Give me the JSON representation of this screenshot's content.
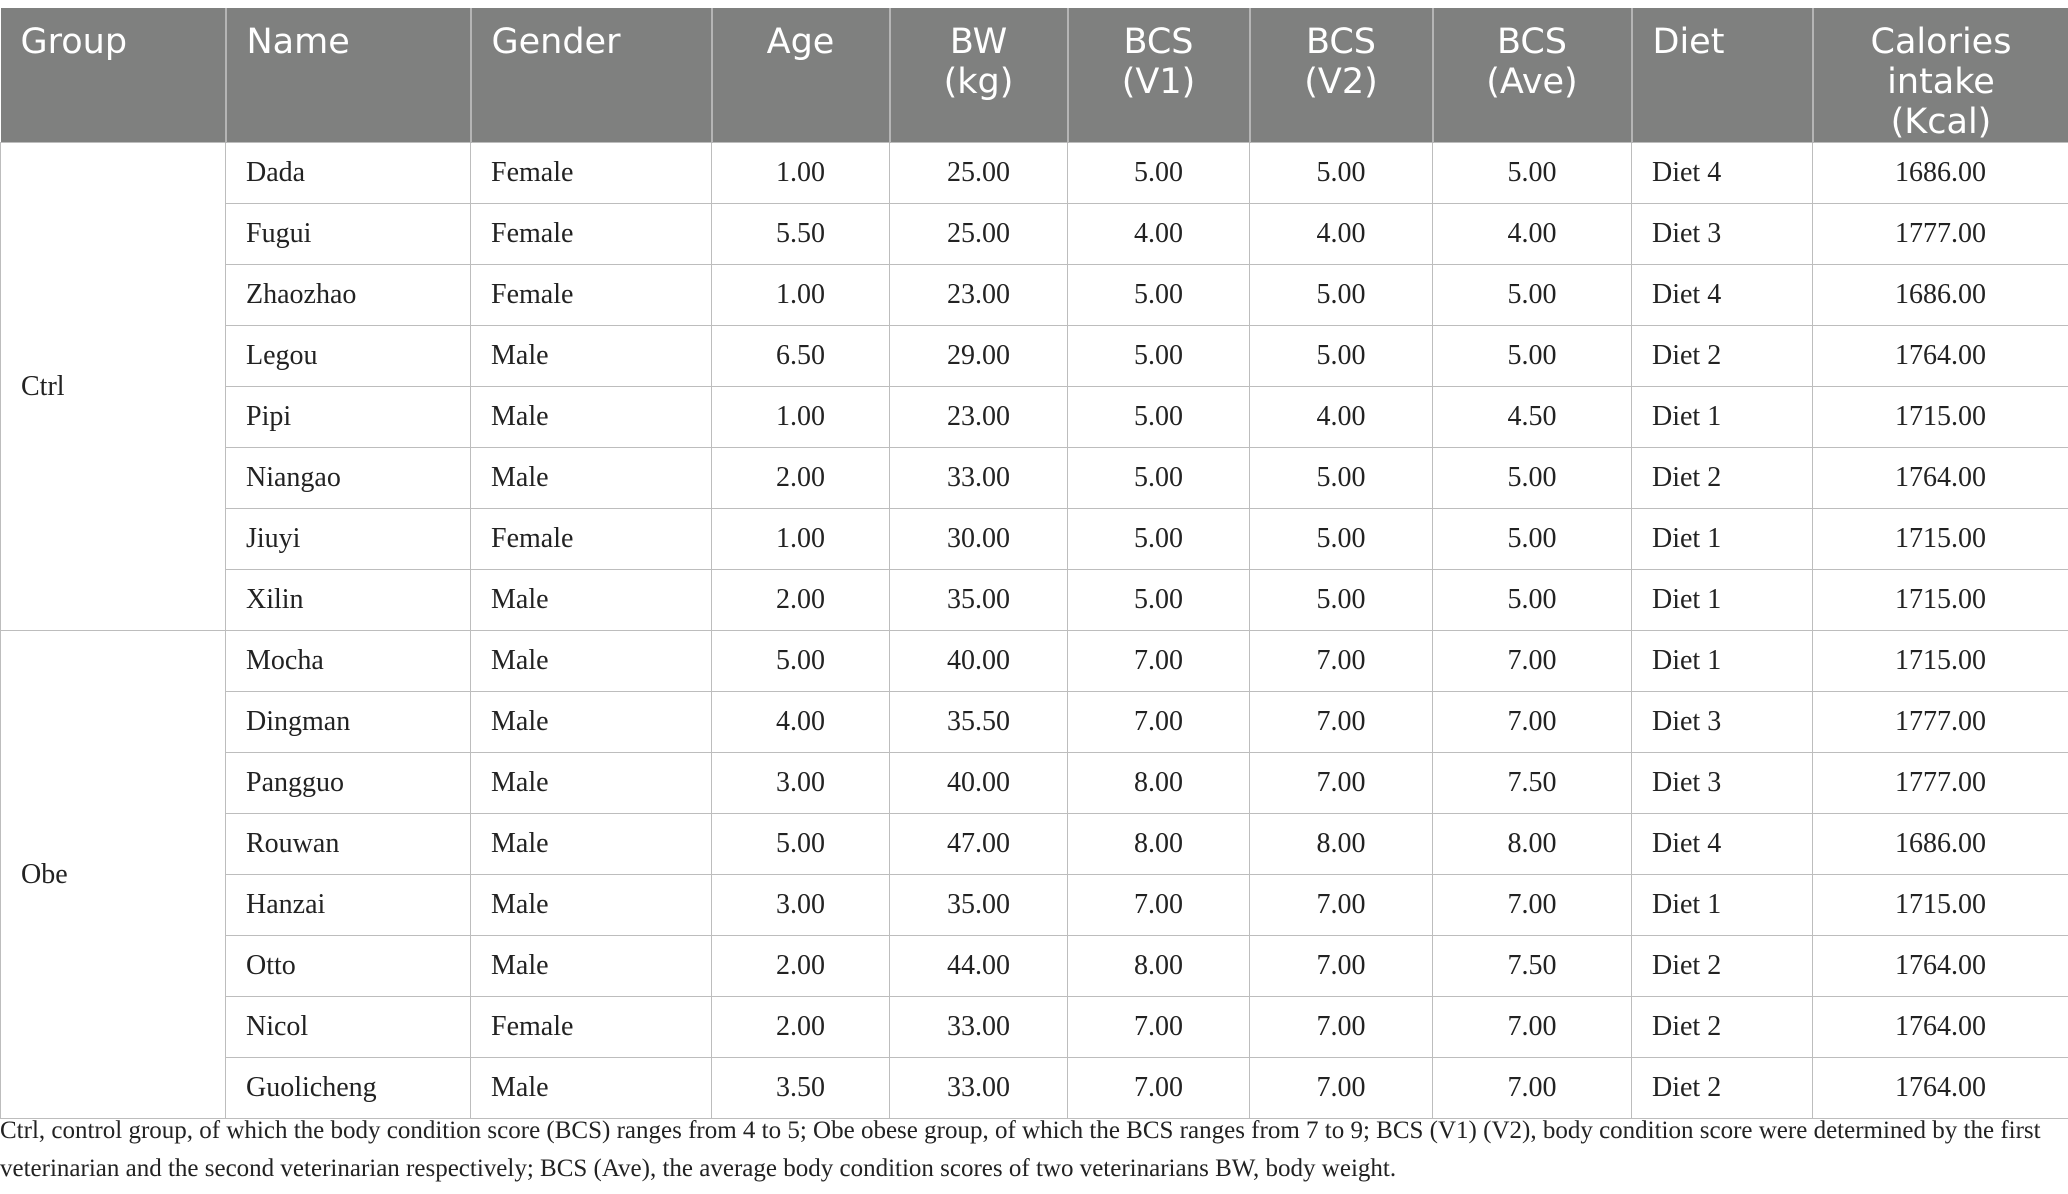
{
  "table": {
    "headers": [
      [
        "Group"
      ],
      [
        "Name"
      ],
      [
        "Gender"
      ],
      [
        "Age"
      ],
      [
        "BW (kg)"
      ],
      [
        "BCS",
        "(V1)"
      ],
      [
        "BCS",
        "(V2)"
      ],
      [
        "BCS",
        "(Ave)"
      ],
      [
        "Diet"
      ],
      [
        "Calories",
        "intake (Kcal)"
      ]
    ],
    "groups": [
      {
        "label": "Ctrl",
        "rows": [
          [
            "Dada",
            "Female",
            "1.00",
            "25.00",
            "5.00",
            "5.00",
            "5.00",
            "Diet 4",
            "1686.00"
          ],
          [
            "Fugui",
            "Female",
            "5.50",
            "25.00",
            "4.00",
            "4.00",
            "4.00",
            "Diet 3",
            "1777.00"
          ],
          [
            "Zhaozhao",
            "Female",
            "1.00",
            "23.00",
            "5.00",
            "5.00",
            "5.00",
            "Diet 4",
            "1686.00"
          ],
          [
            "Legou",
            "Male",
            "6.50",
            "29.00",
            "5.00",
            "5.00",
            "5.00",
            "Diet 2",
            "1764.00"
          ],
          [
            "Pipi",
            "Male",
            "1.00",
            "23.00",
            "5.00",
            "4.00",
            "4.50",
            "Diet 1",
            "1715.00"
          ],
          [
            "Niangao",
            "Male",
            "2.00",
            "33.00",
            "5.00",
            "5.00",
            "5.00",
            "Diet 2",
            "1764.00"
          ],
          [
            "Jiuyi",
            "Female",
            "1.00",
            "30.00",
            "5.00",
            "5.00",
            "5.00",
            "Diet 1",
            "1715.00"
          ],
          [
            "Xilin",
            "Male",
            "2.00",
            "35.00",
            "5.00",
            "5.00",
            "5.00",
            "Diet 1",
            "1715.00"
          ]
        ]
      },
      {
        "label": "Obe",
        "rows": [
          [
            "Mocha",
            "Male",
            "5.00",
            "40.00",
            "7.00",
            "7.00",
            "7.00",
            "Diet 1",
            "1715.00"
          ],
          [
            "Dingman",
            "Male",
            "4.00",
            "35.50",
            "7.00",
            "7.00",
            "7.00",
            "Diet 3",
            "1777.00"
          ],
          [
            "Pangguo",
            "Male",
            "3.00",
            "40.00",
            "8.00",
            "7.00",
            "7.50",
            "Diet 3",
            "1777.00"
          ],
          [
            "Rouwan",
            "Male",
            "5.00",
            "47.00",
            "8.00",
            "8.00",
            "8.00",
            "Diet 4",
            "1686.00"
          ],
          [
            "Hanzai",
            "Male",
            "3.00",
            "35.00",
            "7.00",
            "7.00",
            "7.00",
            "Diet 1",
            "1715.00"
          ],
          [
            "Otto",
            "Male",
            "2.00",
            "44.00",
            "8.00",
            "7.00",
            "7.50",
            "Diet 2",
            "1764.00"
          ],
          [
            "Nicol",
            "Female",
            "2.00",
            "33.00",
            "7.00",
            "7.00",
            "7.00",
            "Diet 2",
            "1764.00"
          ],
          [
            "Guolicheng",
            "Male",
            "3.50",
            "33.00",
            "7.00",
            "7.00",
            "7.00",
            "Diet 2",
            "1764.00"
          ]
        ]
      }
    ]
  },
  "footnote": "Ctrl, control group, of which the body condition score (BCS) ranges from 4 to 5; Obe obese group, of which the BCS ranges from 7 to 9; BCS (V1) (V2), body condition score were determined by the first veterinarian and the second veterinarian respectively; BCS (Ave), the average body condition scores of two veterinarians BW, body weight.",
  "colors": {
    "header_background": "#7f807f",
    "header_text": "#ffffff",
    "grid_line": "#bdbdbd"
  }
}
